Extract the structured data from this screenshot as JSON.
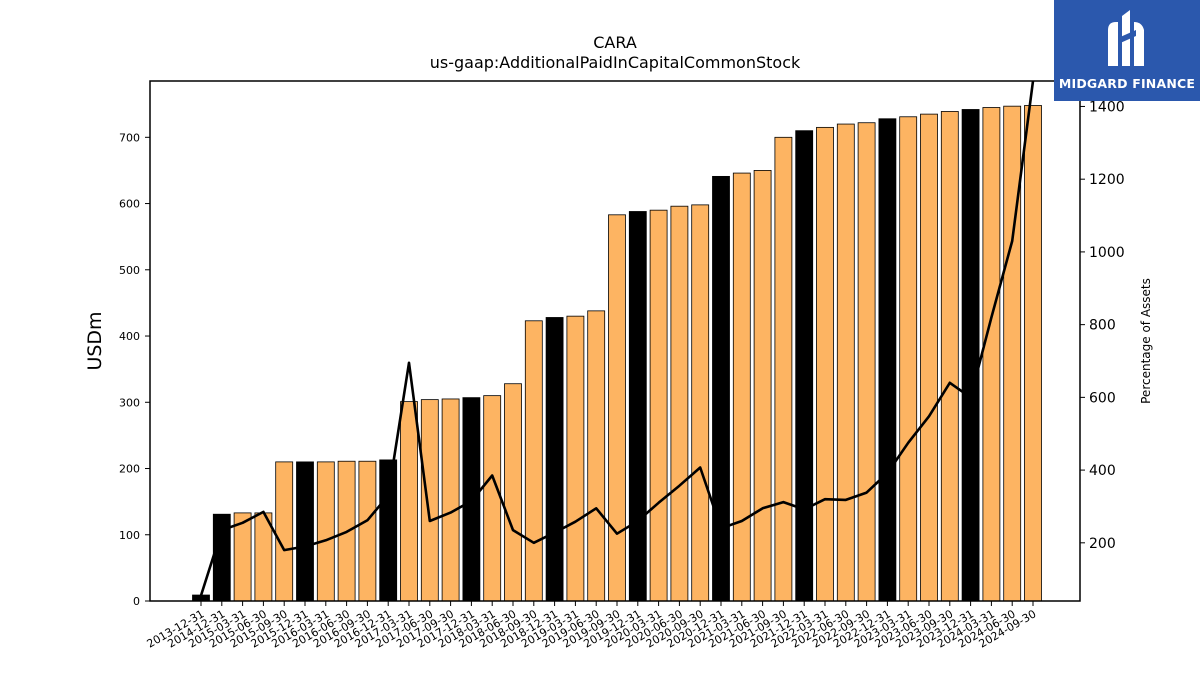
{
  "chart_data": {
    "type": "bar",
    "title": "CARA",
    "subtitle": "us-gaap:AdditionalPaidInCapitalCommonStock",
    "ylabel": "USDm",
    "y2label": "Percentage of Assets",
    "ylim": [
      0,
      785
    ],
    "y2lim": [
      40,
      1470
    ],
    "yticks": [
      0,
      100,
      200,
      300,
      400,
      500,
      600,
      700
    ],
    "y2ticks": [
      200,
      400,
      600,
      800,
      1000,
      1200,
      1400
    ],
    "categories": [
      "2013-12-31",
      "2014-12-31",
      "2015-03-31",
      "2015-06-30",
      "2015-09-30",
      "2015-12-31",
      "2016-03-31",
      "2016-06-30",
      "2016-09-30",
      "2016-12-31",
      "2017-03-31",
      "2017-06-30",
      "2017-09-30",
      "2017-12-31",
      "2018-03-31",
      "2018-06-30",
      "2018-09-30",
      "2018-12-31",
      "2019-03-31",
      "2019-06-30",
      "2019-09-30",
      "2019-12-31",
      "2020-03-31",
      "2020-06-30",
      "2020-09-30",
      "2020-12-31",
      "2021-03-31",
      "2021-06-30",
      "2021-09-30",
      "2021-12-31",
      "2022-03-31",
      "2022-06-30",
      "2022-09-30",
      "2022-12-31",
      "2023-03-31",
      "2023-06-30",
      "2023-09-30",
      "2023-12-31",
      "2024-03-31",
      "2024-06-30",
      "2024-09-30"
    ],
    "series": [
      {
        "kind": "bar",
        "values": [
          9,
          131,
          133,
          133,
          210,
          210,
          210,
          211,
          211,
          213,
          301,
          304,
          305,
          307,
          310,
          328,
          423,
          428,
          430,
          438,
          583,
          588,
          590,
          596,
          598,
          641,
          646,
          650,
          700,
          710,
          715,
          720,
          722,
          728,
          731,
          735,
          739,
          742,
          745,
          747,
          748
        ],
        "highlight": [
          true,
          true,
          false,
          false,
          false,
          true,
          false,
          false,
          false,
          true,
          false,
          false,
          false,
          true,
          false,
          false,
          false,
          true,
          false,
          false,
          false,
          true,
          false,
          false,
          false,
          true,
          false,
          false,
          false,
          true,
          false,
          false,
          false,
          true,
          false,
          false,
          false,
          true,
          false,
          false,
          false
        ]
      },
      {
        "kind": "line",
        "axis": "right",
        "values": [
          55,
          235,
          255,
          285,
          180,
          190,
          207,
          230,
          262,
          330,
          695,
          260,
          283,
          315,
          385,
          235,
          200,
          228,
          258,
          295,
          225,
          260,
          310,
          357,
          407,
          240,
          260,
          295,
          312,
          292,
          320,
          318,
          338,
          392,
          475,
          548,
          640,
          600,
          820,
          1030,
          1470
        ]
      }
    ],
    "colors": {
      "bar": "#fdb462",
      "bar_highlight": "#000000",
      "line": "#000000",
      "bar_edge": "#000000"
    },
    "grid": false,
    "legend": "none"
  },
  "logo": {
    "text": "MIDGARD FINANCE"
  }
}
